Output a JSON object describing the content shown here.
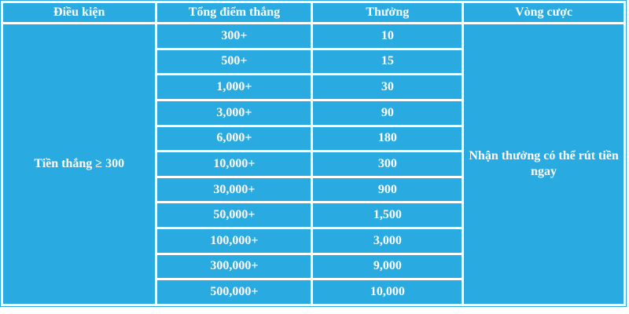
{
  "chart_data": {
    "type": "table",
    "title": "",
    "columns": [
      "Điều kiện",
      "Tổng điểm thắng",
      "Thưởng",
      "Vòng cược"
    ],
    "condition_merged_cell": "Tiền thắng ≥ 300",
    "wagering_merged_cell": "Nhận thưởng có thể rút tiền ngay",
    "rows": [
      {
        "points": "300+",
        "bonus": "10"
      },
      {
        "points": "500+",
        "bonus": "15"
      },
      {
        "points": "1,000+",
        "bonus": "30"
      },
      {
        "points": "3,000+",
        "bonus": "90"
      },
      {
        "points": "6,000+",
        "bonus": "180"
      },
      {
        "points": "10,000+",
        "bonus": "300"
      },
      {
        "points": "30,000+",
        "bonus": "900"
      },
      {
        "points": "50,000+",
        "bonus": "1,500"
      },
      {
        "points": "100,000+",
        "bonus": "3,000"
      },
      {
        "points": "300,000+",
        "bonus": "9,000"
      },
      {
        "points": "500,000+",
        "bonus": "10,000"
      }
    ]
  },
  "colors": {
    "cell_bg": "#29abe2",
    "text": "#ffffff",
    "page_bg": "#ffffff"
  }
}
